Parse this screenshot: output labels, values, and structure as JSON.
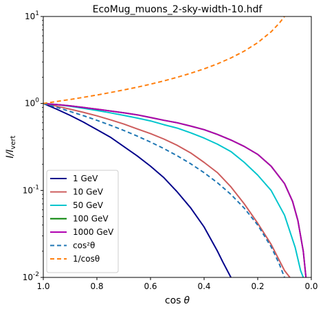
{
  "chart_data": {
    "type": "line",
    "title": "EcoMug_muons_2-sky-width-10.hdf",
    "xlabel_main": "cos",
    "xlabel_symbol": "θ",
    "ylabel_main": "I/I",
    "ylabel_sub": "vert",
    "xlim": [
      1.0,
      0.0
    ],
    "ylim": [
      0.01,
      10
    ],
    "yscale": "log",
    "grid": false,
    "legend_placement": "lower-left",
    "x_ticks": [
      "1.0",
      "0.8",
      "0.6",
      "0.4",
      "0.2",
      "0.0"
    ],
    "y_ticks": [
      {
        "base": "10",
        "exp": "1"
      },
      {
        "base": "10",
        "exp": "0"
      },
      {
        "base": "10",
        "exp": "-1"
      },
      {
        "base": "10",
        "exp": "-2"
      }
    ],
    "series": [
      {
        "name": "1 GeV",
        "color": "#00008b",
        "style": "solid",
        "x": [
          1.0,
          0.95,
          0.9,
          0.85,
          0.8,
          0.75,
          0.7,
          0.65,
          0.6,
          0.55,
          0.5,
          0.45,
          0.4,
          0.35,
          0.33,
          0.3
        ],
        "y": [
          1.0,
          0.86,
          0.73,
          0.61,
          0.5,
          0.41,
          0.32,
          0.25,
          0.19,
          0.14,
          0.096,
          0.063,
          0.038,
          0.02,
          0.015,
          0.01
        ]
      },
      {
        "name": "10 GeV",
        "color": "#cd5c5c",
        "style": "solid",
        "x": [
          1.0,
          0.95,
          0.9,
          0.85,
          0.8,
          0.75,
          0.7,
          0.65,
          0.6,
          0.55,
          0.5,
          0.45,
          0.4,
          0.35,
          0.3,
          0.25,
          0.2,
          0.15,
          0.1,
          0.08,
          0.05
        ],
        "y": [
          1.0,
          0.93,
          0.86,
          0.79,
          0.72,
          0.65,
          0.58,
          0.51,
          0.45,
          0.39,
          0.33,
          0.27,
          0.21,
          0.16,
          0.11,
          0.07,
          0.042,
          0.024,
          0.012,
          0.01,
          0.0085
        ]
      },
      {
        "name": "50 GeV",
        "color": "#00c5cd",
        "style": "solid",
        "x": [
          1.0,
          0.95,
          0.9,
          0.85,
          0.8,
          0.75,
          0.7,
          0.65,
          0.6,
          0.55,
          0.5,
          0.45,
          0.4,
          0.35,
          0.3,
          0.25,
          0.2,
          0.15,
          0.1,
          0.06,
          0.04,
          0.03
        ],
        "y": [
          1.0,
          0.97,
          0.93,
          0.88,
          0.83,
          0.78,
          0.73,
          0.68,
          0.63,
          0.57,
          0.52,
          0.46,
          0.4,
          0.34,
          0.28,
          0.21,
          0.15,
          0.1,
          0.052,
          0.022,
          0.012,
          0.01
        ]
      },
      {
        "name": "100 GeV",
        "color": "#008000",
        "style": "solid",
        "x": [
          1.0,
          0.95,
          0.9,
          0.85,
          0.8,
          0.75,
          0.7,
          0.65,
          0.6,
          0.55,
          0.5,
          0.45,
          0.4,
          0.35,
          0.3,
          0.25,
          0.2,
          0.15,
          0.1,
          0.07,
          0.05,
          0.03,
          0.02
        ],
        "y": [
          1.0,
          0.97,
          0.94,
          0.9,
          0.86,
          0.82,
          0.78,
          0.74,
          0.69,
          0.64,
          0.6,
          0.55,
          0.5,
          0.44,
          0.38,
          0.32,
          0.26,
          0.19,
          0.12,
          0.075,
          0.045,
          0.02,
          0.01
        ]
      },
      {
        "name": "1000 GeV",
        "color": "#b000b0",
        "style": "solid",
        "x": [
          1.0,
          0.95,
          0.9,
          0.85,
          0.8,
          0.75,
          0.7,
          0.65,
          0.6,
          0.55,
          0.5,
          0.45,
          0.4,
          0.35,
          0.3,
          0.25,
          0.2,
          0.15,
          0.1,
          0.07,
          0.05,
          0.03,
          0.02
        ],
        "y": [
          1.0,
          0.97,
          0.94,
          0.9,
          0.86,
          0.82,
          0.78,
          0.74,
          0.69,
          0.64,
          0.6,
          0.55,
          0.5,
          0.44,
          0.38,
          0.32,
          0.26,
          0.19,
          0.12,
          0.075,
          0.045,
          0.02,
          0.01
        ]
      },
      {
        "name": "cos²θ",
        "color": "#1f77b4",
        "style": "dashed",
        "x": [
          1.0,
          0.95,
          0.9,
          0.85,
          0.8,
          0.75,
          0.7,
          0.65,
          0.6,
          0.55,
          0.5,
          0.45,
          0.4,
          0.35,
          0.3,
          0.25,
          0.2,
          0.15,
          0.12,
          0.1
        ],
        "y": [
          1.0,
          0.9025,
          0.81,
          0.7225,
          0.64,
          0.5625,
          0.49,
          0.4225,
          0.36,
          0.3025,
          0.25,
          0.2025,
          0.16,
          0.1225,
          0.09,
          0.0625,
          0.04,
          0.0225,
          0.0144,
          0.01
        ]
      },
      {
        "name": "1/cosθ",
        "color": "#ff7f0e",
        "style": "dashed",
        "x": [
          1.0,
          0.95,
          0.9,
          0.85,
          0.8,
          0.75,
          0.7,
          0.65,
          0.6,
          0.55,
          0.5,
          0.45,
          0.4,
          0.35,
          0.3,
          0.25,
          0.2,
          0.15,
          0.12,
          0.1
        ],
        "y": [
          1.0,
          1.0526,
          1.1111,
          1.1765,
          1.25,
          1.3333,
          1.4286,
          1.5385,
          1.6667,
          1.8182,
          2.0,
          2.2222,
          2.5,
          2.8571,
          3.3333,
          4.0,
          5.0,
          6.6667,
          8.3333,
          10.0
        ]
      }
    ],
    "legend": [
      {
        "label": "1 GeV",
        "series": 0
      },
      {
        "label": "10 GeV",
        "series": 1
      },
      {
        "label": "50 GeV",
        "series": 2
      },
      {
        "label": "100 GeV",
        "series": 3
      },
      {
        "label": "1000 GeV",
        "series": 4
      },
      {
        "label": "cos²θ",
        "series": 5
      },
      {
        "label": "1/cosθ",
        "series": 6
      }
    ]
  }
}
